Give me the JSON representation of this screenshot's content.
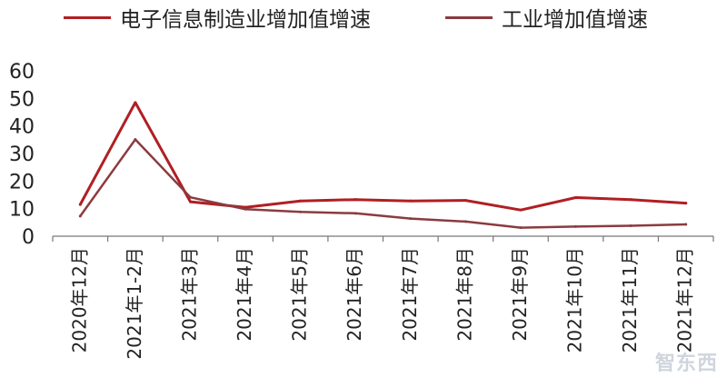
{
  "chart_data": {
    "type": "line",
    "categories": [
      "2020年12月",
      "2021年1-2月",
      "2021年3月",
      "2021年4月",
      "2021年5月",
      "2021年6月",
      "2021年7月",
      "2021年8月",
      "2021年9月",
      "2021年10月",
      "2021年11月",
      "2021年12月"
    ],
    "series": [
      {
        "name": "电子信息制造业增加值增速",
        "color": "#b01f24",
        "values": [
          11.5,
          48.5,
          12.5,
          10.5,
          12.8,
          13.3,
          12.8,
          13.0,
          9.5,
          14.0,
          13.3,
          12.0
        ]
      },
      {
        "name": "工业增加值增速",
        "color": "#8b3b3f",
        "values": [
          7.3,
          35.1,
          14.1,
          9.8,
          8.8,
          8.3,
          6.4,
          5.3,
          3.1,
          3.5,
          3.8,
          4.3
        ]
      }
    ],
    "yticks": [
      0,
      10,
      20,
      30,
      40,
      50,
      60
    ],
    "ylim": [
      0,
      60
    ],
    "legend": "top",
    "grid": false
  },
  "watermark": "智东西"
}
